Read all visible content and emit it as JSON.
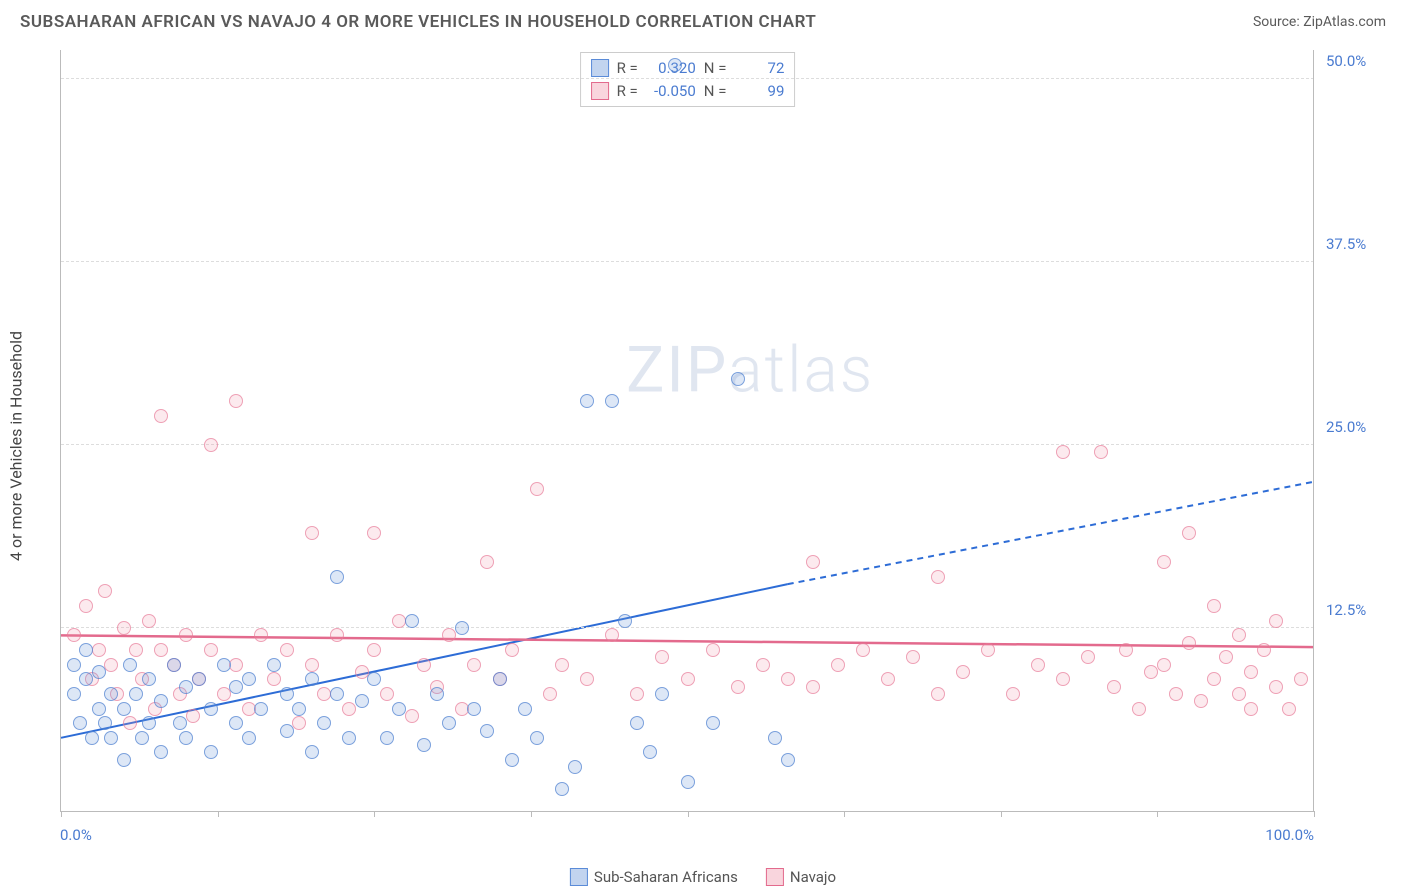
{
  "title": "SUBSAHARAN AFRICAN VS NAVAJO 4 OR MORE VEHICLES IN HOUSEHOLD CORRELATION CHART",
  "source_label": "Source:",
  "source_name": "ZipAtlas.com",
  "ylabel": "4 or more Vehicles in Household",
  "watermark_a": "ZIP",
  "watermark_b": "atlas",
  "chart": {
    "type": "scatter",
    "xlim": [
      0,
      100
    ],
    "ylim": [
      0,
      52
    ],
    "xtick_positions": [
      0,
      12.5,
      25,
      37.5,
      50,
      62.5,
      75,
      87.5,
      100
    ],
    "xlabel_min": "0.0%",
    "xlabel_max": "100.0%",
    "yticks": [
      {
        "v": 12.5,
        "label": "12.5%"
      },
      {
        "v": 25.0,
        "label": "25.0%"
      },
      {
        "v": 37.5,
        "label": "37.5%"
      },
      {
        "v": 50.0,
        "label": "50.0%"
      }
    ],
    "background_color": "#ffffff",
    "grid_color": "#dddddd",
    "axis_color": "#bbbbbb",
    "tick_label_color": "#4a7bd0",
    "series": {
      "blue": {
        "name": "Sub-Saharan Africans",
        "fill": "rgba(120,160,220,0.25)",
        "stroke": "rgba(80,130,210,0.7)",
        "marker_radius_px": 7,
        "R": "0.320",
        "N": "72",
        "trend": {
          "x1": 0,
          "y1": 5,
          "x2": 58,
          "y2": 15.5,
          "x_dash_to": 100,
          "y_dash_to": 22.5,
          "stroke": "#2d6cd6",
          "width": 2
        },
        "points": [
          [
            1,
            8
          ],
          [
            1,
            10
          ],
          [
            1.5,
            6
          ],
          [
            2,
            9
          ],
          [
            2,
            11
          ],
          [
            2.5,
            5
          ],
          [
            3,
            7
          ],
          [
            3,
            9.5
          ],
          [
            3.5,
            6
          ],
          [
            4,
            8
          ],
          [
            4,
            5
          ],
          [
            5,
            7
          ],
          [
            5,
            3.5
          ],
          [
            5.5,
            10
          ],
          [
            6,
            8
          ],
          [
            6.5,
            5
          ],
          [
            7,
            9
          ],
          [
            7,
            6
          ],
          [
            8,
            7.5
          ],
          [
            8,
            4
          ],
          [
            9,
            10
          ],
          [
            9.5,
            6
          ],
          [
            10,
            8.5
          ],
          [
            10,
            5
          ],
          [
            11,
            9
          ],
          [
            12,
            7
          ],
          [
            12,
            4
          ],
          [
            13,
            10
          ],
          [
            14,
            6
          ],
          [
            14,
            8.5
          ],
          [
            15,
            5
          ],
          [
            15,
            9
          ],
          [
            16,
            7
          ],
          [
            17,
            10
          ],
          [
            18,
            5.5
          ],
          [
            18,
            8
          ],
          [
            19,
            7
          ],
          [
            20,
            4
          ],
          [
            20,
            9
          ],
          [
            21,
            6
          ],
          [
            22,
            16
          ],
          [
            22,
            8
          ],
          [
            23,
            5
          ],
          [
            24,
            7.5
          ],
          [
            25,
            9
          ],
          [
            26,
            5
          ],
          [
            27,
            7
          ],
          [
            28,
            13
          ],
          [
            29,
            4.5
          ],
          [
            30,
            8
          ],
          [
            31,
            6
          ],
          [
            32,
            12.5
          ],
          [
            33,
            7
          ],
          [
            34,
            5.5
          ],
          [
            35,
            9
          ],
          [
            36,
            3.5
          ],
          [
            37,
            7
          ],
          [
            38,
            5
          ],
          [
            40,
            1.5
          ],
          [
            41,
            3
          ],
          [
            42,
            28
          ],
          [
            44,
            28
          ],
          [
            45,
            13
          ],
          [
            46,
            6
          ],
          [
            47,
            4
          ],
          [
            48,
            8
          ],
          [
            50,
            2
          ],
          [
            52,
            6
          ],
          [
            54,
            29.5
          ],
          [
            57,
            5
          ],
          [
            58,
            3.5
          ],
          [
            49,
            51
          ]
        ]
      },
      "pink": {
        "name": "Navajo",
        "fill": "rgba(240,150,170,0.2)",
        "stroke": "rgba(230,120,150,0.65)",
        "marker_radius_px": 7,
        "R": "-0.050",
        "N": "99",
        "trend": {
          "x1": 0,
          "y1": 12,
          "x2": 100,
          "y2": 11.2,
          "stroke": "#e36a8d",
          "width": 2.5
        },
        "points": [
          [
            1,
            12
          ],
          [
            2,
            14
          ],
          [
            2.5,
            9
          ],
          [
            3,
            11
          ],
          [
            3.5,
            15
          ],
          [
            4,
            10
          ],
          [
            4.5,
            8
          ],
          [
            5,
            12.5
          ],
          [
            5.5,
            6
          ],
          [
            6,
            11
          ],
          [
            6.5,
            9
          ],
          [
            7,
            13
          ],
          [
            7.5,
            7
          ],
          [
            8,
            27
          ],
          [
            8,
            11
          ],
          [
            9,
            10
          ],
          [
            9.5,
            8
          ],
          [
            10,
            12
          ],
          [
            10.5,
            6.5
          ],
          [
            11,
            9
          ],
          [
            12,
            25
          ],
          [
            12,
            11
          ],
          [
            13,
            8
          ],
          [
            14,
            28
          ],
          [
            14,
            10
          ],
          [
            15,
            7
          ],
          [
            16,
            12
          ],
          [
            17,
            9
          ],
          [
            18,
            11
          ],
          [
            19,
            6
          ],
          [
            20,
            19
          ],
          [
            20,
            10
          ],
          [
            21,
            8
          ],
          [
            22,
            12
          ],
          [
            23,
            7
          ],
          [
            24,
            9.5
          ],
          [
            25,
            19
          ],
          [
            25,
            11
          ],
          [
            26,
            8
          ],
          [
            27,
            13
          ],
          [
            28,
            6.5
          ],
          [
            29,
            10
          ],
          [
            30,
            8.5
          ],
          [
            31,
            12
          ],
          [
            32,
            7
          ],
          [
            33,
            10
          ],
          [
            34,
            17
          ],
          [
            35,
            9
          ],
          [
            36,
            11
          ],
          [
            38,
            22
          ],
          [
            39,
            8
          ],
          [
            40,
            10
          ],
          [
            42,
            9
          ],
          [
            44,
            12
          ],
          [
            46,
            8
          ],
          [
            48,
            10.5
          ],
          [
            50,
            9
          ],
          [
            52,
            11
          ],
          [
            54,
            8.5
          ],
          [
            56,
            10
          ],
          [
            58,
            9
          ],
          [
            60,
            17
          ],
          [
            60,
            8.5
          ],
          [
            62,
            10
          ],
          [
            64,
            11
          ],
          [
            66,
            9
          ],
          [
            68,
            10.5
          ],
          [
            70,
            16
          ],
          [
            70,
            8
          ],
          [
            72,
            9.5
          ],
          [
            74,
            11
          ],
          [
            76,
            8
          ],
          [
            78,
            10
          ],
          [
            80,
            24.5
          ],
          [
            80,
            9
          ],
          [
            82,
            10.5
          ],
          [
            83,
            24.5
          ],
          [
            84,
            8.5
          ],
          [
            85,
            11
          ],
          [
            86,
            7
          ],
          [
            87,
            9.5
          ],
          [
            88,
            17
          ],
          [
            88,
            10
          ],
          [
            89,
            8
          ],
          [
            90,
            19
          ],
          [
            90,
            11.5
          ],
          [
            91,
            7.5
          ],
          [
            92,
            14
          ],
          [
            92,
            9
          ],
          [
            93,
            10.5
          ],
          [
            94,
            8
          ],
          [
            94,
            12
          ],
          [
            95,
            7
          ],
          [
            95,
            9.5
          ],
          [
            96,
            11
          ],
          [
            97,
            8.5
          ],
          [
            97,
            13
          ],
          [
            98,
            7
          ],
          [
            99,
            9
          ]
        ]
      }
    },
    "stats_labels": {
      "R": "R =",
      "N": "N ="
    }
  },
  "legend_items": [
    {
      "label": "Sub-Saharan Africans",
      "swatch_fill": "rgba(120,160,220,0.45)",
      "swatch_border": "#5a8bd8"
    },
    {
      "label": "Navajo",
      "swatch_fill": "rgba(240,150,170,0.4)",
      "swatch_border": "#e36a8d"
    }
  ]
}
